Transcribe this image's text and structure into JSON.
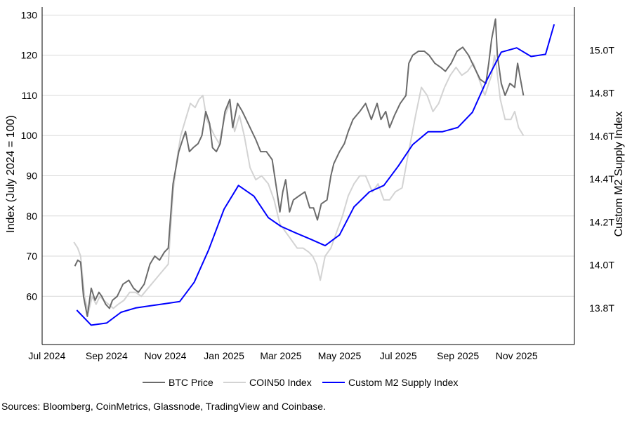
{
  "chart_data": {
    "type": "line",
    "title": "",
    "xlabel": "",
    "ylabel_left": "Index (July 2024 = 100)",
    "ylabel_right": "Custom M2 Supply Index",
    "left_ylim": [
      48,
      132
    ],
    "left_yticks": [
      60,
      70,
      80,
      90,
      100,
      110,
      120,
      130
    ],
    "right_ylim": [
      13.63,
      15.2
    ],
    "right_yticks": [
      13.8,
      14.0,
      14.2,
      14.4,
      14.6,
      14.8,
      15.0
    ],
    "right_tick_labels": [
      "13.8T",
      "14.0T",
      "14.2T",
      "14.4T",
      "14.6T",
      "14.8T",
      "15.0T"
    ],
    "xlim": [
      "2024-06-26",
      "2025-12-31"
    ],
    "x_ticks": [
      {
        "date": "2024-07-01",
        "label": "Jul 2024"
      },
      {
        "date": "2024-09-01",
        "label": "Sep 2024"
      },
      {
        "date": "2024-11-01",
        "label": "Nov 2024"
      },
      {
        "date": "2025-01-01",
        "label": "Jan 2025"
      },
      {
        "date": "2025-03-01",
        "label": "Mar 2025"
      },
      {
        "date": "2025-05-01",
        "label": "May 2025"
      },
      {
        "date": "2025-07-01",
        "label": "Jul 2025"
      },
      {
        "date": "2025-09-01",
        "label": "Sep 2025"
      },
      {
        "date": "2025-11-01",
        "label": "Nov 2025"
      }
    ],
    "grid": "horizontal",
    "legend_position": "bottom",
    "series": [
      {
        "name": "BTC Price",
        "axis": "left",
        "color": "#6b6b6b",
        "width": 2,
        "x": [
          "2024-07-30",
          "2024-08-02",
          "2024-08-05",
          "2024-08-08",
          "2024-08-12",
          "2024-08-16",
          "2024-08-20",
          "2024-08-24",
          "2024-08-27",
          "2024-08-31",
          "2024-09-04",
          "2024-09-07",
          "2024-09-12",
          "2024-09-18",
          "2024-09-24",
          "2024-09-29",
          "2024-10-04",
          "2024-10-10",
          "2024-10-16",
          "2024-10-21",
          "2024-10-26",
          "2024-10-31",
          "2024-11-04",
          "2024-11-09",
          "2024-11-12",
          "2024-11-15",
          "2024-11-19",
          "2024-11-22",
          "2024-11-26",
          "2024-11-30",
          "2024-12-05",
          "2024-12-09",
          "2024-12-13",
          "2024-12-17",
          "2024-12-20",
          "2024-12-24",
          "2024-12-28",
          "2025-01-02",
          "2025-01-07",
          "2025-01-10",
          "2025-01-15",
          "2025-01-20",
          "2025-01-24",
          "2025-01-30",
          "2025-02-03",
          "2025-02-08",
          "2025-02-14",
          "2025-02-20",
          "2025-02-25",
          "2025-02-28",
          "2025-03-03",
          "2025-03-06",
          "2025-03-10",
          "2025-03-14",
          "2025-03-20",
          "2025-03-26",
          "2025-03-31",
          "2025-04-04",
          "2025-04-08",
          "2025-04-12",
          "2025-04-18",
          "2025-04-22",
          "2025-04-25",
          "2025-05-01",
          "2025-05-06",
          "2025-05-10",
          "2025-05-15",
          "2025-05-22",
          "2025-05-28",
          "2025-06-03",
          "2025-06-09",
          "2025-06-13",
          "2025-06-18",
          "2025-06-22",
          "2025-06-27",
          "2025-07-03",
          "2025-07-09",
          "2025-07-12",
          "2025-07-16",
          "2025-07-22",
          "2025-07-28",
          "2025-08-02",
          "2025-08-08",
          "2025-08-14",
          "2025-08-19",
          "2025-08-25",
          "2025-08-31",
          "2025-09-06",
          "2025-09-12",
          "2025-09-18",
          "2025-09-24",
          "2025-09-30",
          "2025-10-03",
          "2025-10-06",
          "2025-10-10",
          "2025-10-12",
          "2025-10-16",
          "2025-10-20",
          "2025-10-25",
          "2025-10-30",
          "2025-11-02",
          "2025-11-05",
          "2025-11-08"
        ],
        "values": [
          67.5,
          69,
          68.5,
          60,
          55,
          62,
          59,
          61,
          60,
          58,
          57,
          59,
          60,
          63,
          64,
          62,
          61,
          63,
          68,
          70,
          69,
          71,
          72,
          88,
          92,
          96,
          99,
          101,
          96,
          97,
          98,
          100,
          106,
          103,
          97,
          96,
          98,
          106,
          109,
          102,
          108,
          106,
          104,
          101,
          99,
          96,
          96,
          94,
          86,
          81,
          86,
          89,
          81,
          84,
          85,
          86,
          82,
          82,
          79,
          83,
          84,
          90,
          93,
          96,
          98,
          101,
          104,
          106,
          108,
          104,
          108,
          104,
          106,
          102,
          105,
          108,
          110,
          118,
          120,
          121,
          121,
          120,
          118,
          117,
          116,
          118,
          121,
          122,
          120,
          117,
          114,
          113,
          118,
          124,
          129,
          120,
          113,
          110,
          113,
          112,
          118,
          114,
          110
        ]
      },
      {
        "name": "COIN50 Index",
        "axis": "left",
        "color": "#d3d3d3",
        "width": 2,
        "x": [
          "2024-07-29",
          "2024-08-02",
          "2024-08-05",
          "2024-08-09",
          "2024-08-13",
          "2024-08-17",
          "2024-08-21",
          "2024-08-25",
          "2024-08-29",
          "2024-09-03",
          "2024-09-08",
          "2024-09-13",
          "2024-09-19",
          "2024-09-25",
          "2024-10-01",
          "2024-10-07",
          "2024-10-14",
          "2024-10-21",
          "2024-10-28",
          "2024-11-04",
          "2024-11-09",
          "2024-11-13",
          "2024-11-17",
          "2024-11-22",
          "2024-11-27",
          "2024-12-02",
          "2024-12-06",
          "2024-12-10",
          "2024-12-14",
          "2024-12-18",
          "2024-12-22",
          "2024-12-27",
          "2025-01-02",
          "2025-01-07",
          "2025-01-12",
          "2025-01-17",
          "2025-01-22",
          "2025-01-28",
          "2025-02-03",
          "2025-02-09",
          "2025-02-16",
          "2025-02-22",
          "2025-02-28",
          "2025-03-06",
          "2025-03-12",
          "2025-03-18",
          "2025-03-24",
          "2025-03-30",
          "2025-04-03",
          "2025-04-07",
          "2025-04-11",
          "2025-04-16",
          "2025-04-22",
          "2025-04-28",
          "2025-05-04",
          "2025-05-10",
          "2025-05-16",
          "2025-05-22",
          "2025-05-28",
          "2025-06-04",
          "2025-06-10",
          "2025-06-16",
          "2025-06-22",
          "2025-06-28",
          "2025-07-05",
          "2025-07-11",
          "2025-07-15",
          "2025-07-19",
          "2025-07-25",
          "2025-07-31",
          "2025-08-06",
          "2025-08-12",
          "2025-08-18",
          "2025-08-24",
          "2025-08-30",
          "2025-09-05",
          "2025-09-11",
          "2025-09-17",
          "2025-09-23",
          "2025-09-29",
          "2025-10-03",
          "2025-10-06",
          "2025-10-09",
          "2025-10-11",
          "2025-10-15",
          "2025-10-20",
          "2025-10-26",
          "2025-10-30",
          "2025-11-03",
          "2025-11-08"
        ],
        "values": [
          73.5,
          72,
          70,
          60,
          56,
          60,
          58,
          60,
          59,
          58,
          57,
          58,
          59,
          61,
          61,
          60,
          62,
          64,
          66,
          68,
          86,
          94,
          100,
          104,
          108,
          107,
          109,
          110,
          104,
          102,
          100,
          98,
          105,
          108,
          101,
          105,
          100,
          92,
          89,
          90,
          88,
          84,
          78,
          76,
          74,
          72,
          72,
          71,
          70,
          68,
          64,
          70,
          72,
          76,
          80,
          85,
          88,
          90,
          90,
          86,
          88,
          84,
          84,
          86,
          87,
          95,
          100,
          105,
          112,
          110,
          106,
          108,
          112,
          115,
          117,
          115,
          116,
          118,
          114,
          110,
          113,
          115,
          120,
          117,
          109,
          104,
          104,
          106,
          102,
          100
        ]
      },
      {
        "name": "Custom M2 Supply Index",
        "axis": "right",
        "color": "#0000ff",
        "width": 2,
        "x": [
          "2024-08-01",
          "2024-08-16",
          "2024-09-01",
          "2024-09-16",
          "2024-10-01",
          "2024-10-16",
          "2024-11-01",
          "2024-11-16",
          "2024-12-01",
          "2024-12-16",
          "2025-01-01",
          "2025-01-16",
          "2025-02-01",
          "2025-02-16",
          "2025-03-01",
          "2025-03-16",
          "2025-04-01",
          "2025-04-16",
          "2025-05-01",
          "2025-05-16",
          "2025-06-01",
          "2025-06-16",
          "2025-07-01",
          "2025-07-16",
          "2025-08-01",
          "2025-08-16",
          "2025-09-01",
          "2025-09-16",
          "2025-10-01",
          "2025-10-16",
          "2025-11-01",
          "2025-11-16",
          "2025-12-01",
          "2025-12-10"
        ],
        "values": [
          13.79,
          13.72,
          13.73,
          13.78,
          13.8,
          13.81,
          13.82,
          13.83,
          13.92,
          14.07,
          14.26,
          14.37,
          14.32,
          14.22,
          14.18,
          14.15,
          14.12,
          14.09,
          14.14,
          14.27,
          14.34,
          14.37,
          14.46,
          14.56,
          14.62,
          14.62,
          14.64,
          14.71,
          14.86,
          14.99,
          15.01,
          14.97,
          14.98,
          15.12
        ]
      }
    ]
  },
  "legend": {
    "items": [
      {
        "label": "BTC Price",
        "color": "#6b6b6b"
      },
      {
        "label": "COIN50 Index",
        "color": "#d3d3d3"
      },
      {
        "label": "Custom M2 Supply Index",
        "color": "#0000ff"
      }
    ]
  },
  "source_text": "Sources: Bloomberg, CoinMetrics, Glassnode, TradingView and Coinbase."
}
